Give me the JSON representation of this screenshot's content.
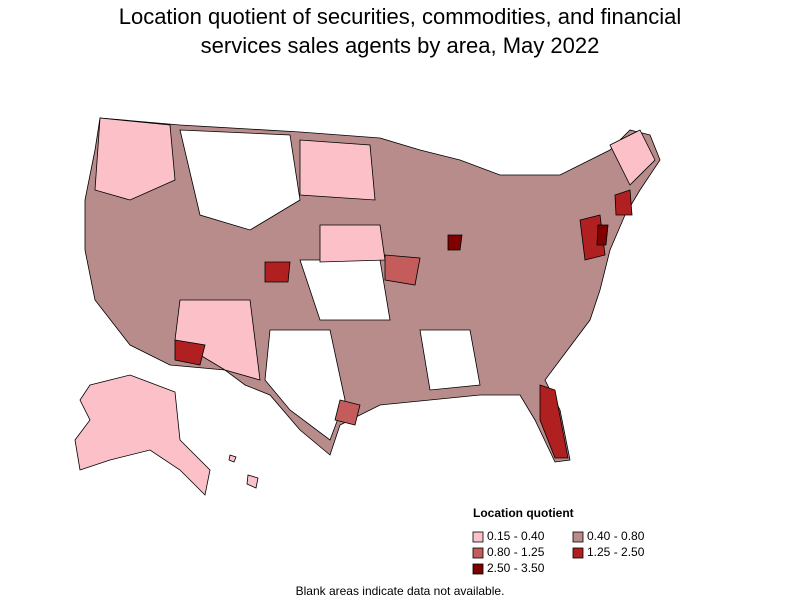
{
  "title": [
    "Location quotient of securities, commodities, and financial",
    "services sales agents by area, May 2022"
  ],
  "legend": {
    "title": "Location quotient",
    "items": [
      {
        "label": "0.15 - 0.40",
        "color": "#fbc0c8"
      },
      {
        "label": "0.40 - 0.80",
        "color": "#b98c8c"
      },
      {
        "label": "0.80 - 1.25",
        "color": "#c45c5c"
      },
      {
        "label": "1.25 - 2.50",
        "color": "#b02020"
      },
      {
        "label": "2.50 - 3.50",
        "color": "#800000"
      }
    ]
  },
  "note": "Blank areas indicate data not available."
}
